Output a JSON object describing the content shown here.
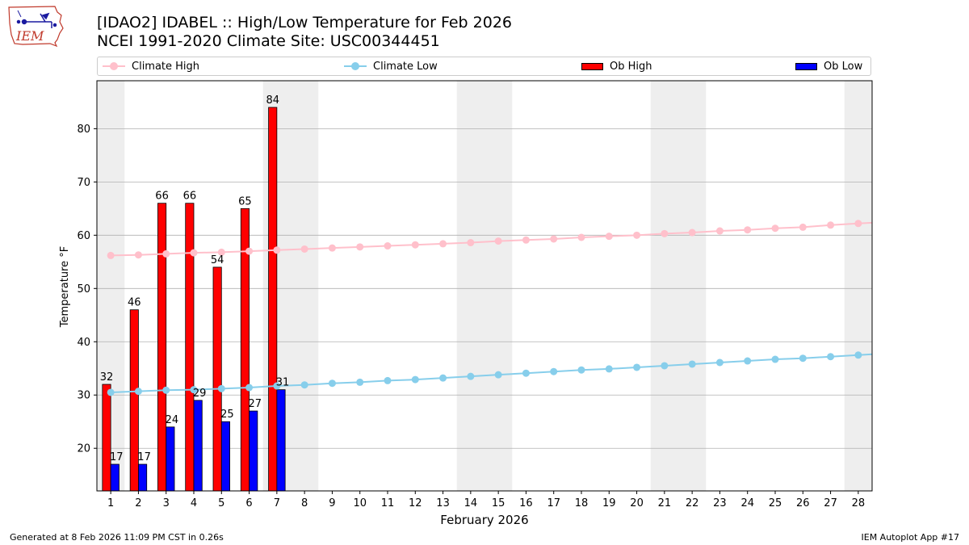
{
  "logo": {
    "text": "IEM",
    "icon": "iowa-state-outline-icon"
  },
  "header": {
    "title": "[IDAO2] IDABEL :: High/Low Temperature for Feb 2026",
    "subtitle": "NCEI 1991-2020 Climate Site: USC00344451"
  },
  "legend": {
    "climate_high": "Climate High",
    "climate_low": "Climate Low",
    "ob_high": "Ob High",
    "ob_low": "Ob Low"
  },
  "footer": {
    "generated": "Generated at 8 Feb 2026 11:09 PM CST in 0.26s",
    "app": "IEM Autoplot App #17"
  },
  "colors": {
    "climate_high": "#ffc0cb",
    "climate_low": "#87ceeb",
    "ob_high": "#ff0000",
    "ob_low": "#0000ff",
    "weekend_band": "#eeeeee",
    "grid": "#b0b0b0"
  },
  "chart_data": {
    "type": "bar",
    "xlabel": "February 2026",
    "ylabel": "Temperature °F",
    "xlim": [
      0.5,
      28.5
    ],
    "ylim": [
      12,
      89
    ],
    "yticks": [
      20,
      30,
      40,
      50,
      60,
      70,
      80
    ],
    "grid": "horizontal",
    "legend_position": "top",
    "shaded_days": [
      1,
      7,
      8,
      14,
      15,
      21,
      22,
      28
    ],
    "days": [
      1,
      2,
      3,
      4,
      5,
      6,
      7,
      8,
      9,
      10,
      11,
      12,
      13,
      14,
      15,
      16,
      17,
      18,
      19,
      20,
      21,
      22,
      23,
      24,
      25,
      26,
      27,
      28
    ],
    "series": [
      {
        "name": "Ob High",
        "kind": "bar",
        "color": "#ff0000",
        "values": [
          32,
          46,
          66,
          66,
          54,
          65,
          84
        ]
      },
      {
        "name": "Ob Low",
        "kind": "bar",
        "color": "#0000ff",
        "values": [
          17,
          17,
          24,
          29,
          25,
          27,
          31
        ]
      },
      {
        "name": "Climate High",
        "kind": "line",
        "color": "#ffc0cb",
        "values": [
          56.2,
          56.3,
          56.5,
          56.7,
          56.8,
          57.0,
          57.2,
          57.4,
          57.6,
          57.8,
          58.0,
          58.2,
          58.4,
          58.6,
          58.9,
          59.1,
          59.3,
          59.6,
          59.8,
          60.0,
          60.3,
          60.5,
          60.8,
          61.0,
          61.3,
          61.5,
          61.9,
          62.2
        ]
      },
      {
        "name": "Climate Low",
        "kind": "line",
        "color": "#87ceeb",
        "values": [
          30.5,
          30.7,
          30.9,
          31.0,
          31.2,
          31.4,
          31.7,
          31.9,
          32.2,
          32.4,
          32.7,
          32.9,
          33.2,
          33.5,
          33.8,
          34.1,
          34.4,
          34.7,
          34.9,
          35.2,
          35.5,
          35.8,
          36.1,
          36.4,
          36.7,
          36.9,
          37.2,
          37.5
        ]
      }
    ]
  }
}
